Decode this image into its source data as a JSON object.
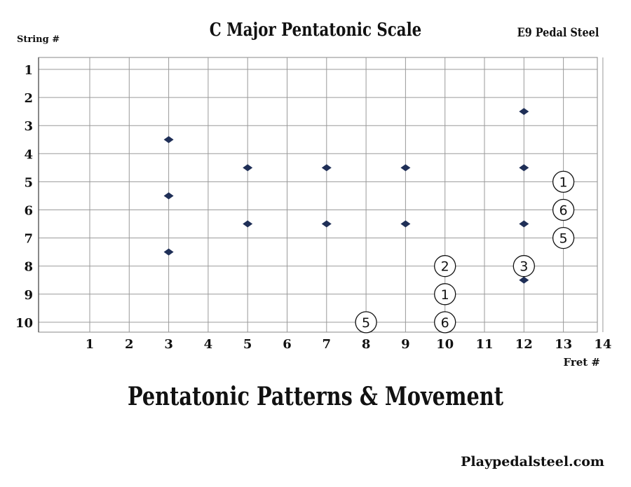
{
  "header": {
    "title": "C Major Pentatonic Scale",
    "instrument": "E9 Pedal Steel",
    "string_axis_label": "String #",
    "fret_axis_label": "Fret #"
  },
  "footer": {
    "heading": "Pentatonic Patterns & Movement",
    "website": "Playpedalsteel.com"
  },
  "colors": {
    "marker": "#1f2f57",
    "grid": "#9a9a9a"
  },
  "fretboard": {
    "strings": [
      "1",
      "2",
      "3",
      "4",
      "5",
      "6",
      "7",
      "8",
      "9",
      "10"
    ],
    "frets": [
      "1",
      "2",
      "3",
      "4",
      "5",
      "6",
      "7",
      "8",
      "9",
      "10",
      "11",
      "12",
      "13",
      "14"
    ],
    "markers": [
      {
        "fret": 3,
        "string": 3.5
      },
      {
        "fret": 3,
        "string": 5.5
      },
      {
        "fret": 3,
        "string": 7.5
      },
      {
        "fret": 5,
        "string": 4.5
      },
      {
        "fret": 5,
        "string": 6.5
      },
      {
        "fret": 7,
        "string": 4.5
      },
      {
        "fret": 7,
        "string": 6.5
      },
      {
        "fret": 9,
        "string": 4.5
      },
      {
        "fret": 9,
        "string": 6.5
      },
      {
        "fret": 12,
        "string": 2.5
      },
      {
        "fret": 12,
        "string": 4.5
      },
      {
        "fret": 12,
        "string": 6.5
      },
      {
        "fret": 12,
        "string": 8.5
      }
    ],
    "notes": [
      {
        "fret": 13,
        "string": 5,
        "label": "1"
      },
      {
        "fret": 13,
        "string": 6,
        "label": "6"
      },
      {
        "fret": 13,
        "string": 7,
        "label": "5"
      },
      {
        "fret": 10,
        "string": 8,
        "label": "2"
      },
      {
        "fret": 12,
        "string": 8,
        "label": "3"
      },
      {
        "fret": 10,
        "string": 9,
        "label": "1"
      },
      {
        "fret": 8,
        "string": 10,
        "label": "5"
      },
      {
        "fret": 10,
        "string": 10,
        "label": "6"
      }
    ]
  }
}
